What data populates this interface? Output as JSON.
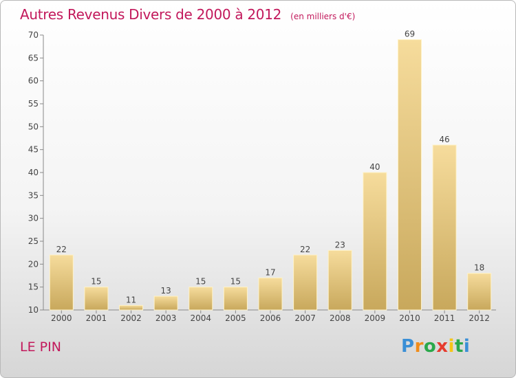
{
  "header": {
    "title": "Autres Revenus Divers de 2000 à 2012",
    "subtitle": "(en milliers d'€)"
  },
  "footer": {
    "city": "LE PIN",
    "logo": [
      "P",
      "r",
      "o",
      "x",
      "i",
      "t",
      "i"
    ],
    "logo_colors": [
      "#3a8fd6",
      "#f08c1a",
      "#2aa84a",
      "#e63b2e",
      "#f5c518",
      "#2aa84a",
      "#3a8fd6"
    ]
  },
  "colors": {
    "title": "#c2185b",
    "bar_light": "#f6dc9c",
    "bar_dark": "#c8a85c",
    "axis": "#888888",
    "grid": "#ffffff"
  },
  "chart_data": {
    "type": "bar",
    "title": "Autres Revenus Divers de 2000 à 2012",
    "subtitle": "(en milliers d'€)",
    "categories": [
      "2000",
      "2001",
      "2002",
      "2003",
      "2004",
      "2005",
      "2006",
      "2007",
      "2008",
      "2009",
      "2010",
      "2011",
      "2012"
    ],
    "values": [
      22,
      15,
      11,
      13,
      15,
      15,
      17,
      22,
      23,
      40,
      69,
      46,
      18
    ],
    "ylim": [
      10,
      70
    ],
    "yticks": [
      10,
      15,
      20,
      25,
      30,
      35,
      40,
      45,
      50,
      55,
      60,
      65,
      70
    ],
    "grid": false,
    "legend": "none"
  }
}
